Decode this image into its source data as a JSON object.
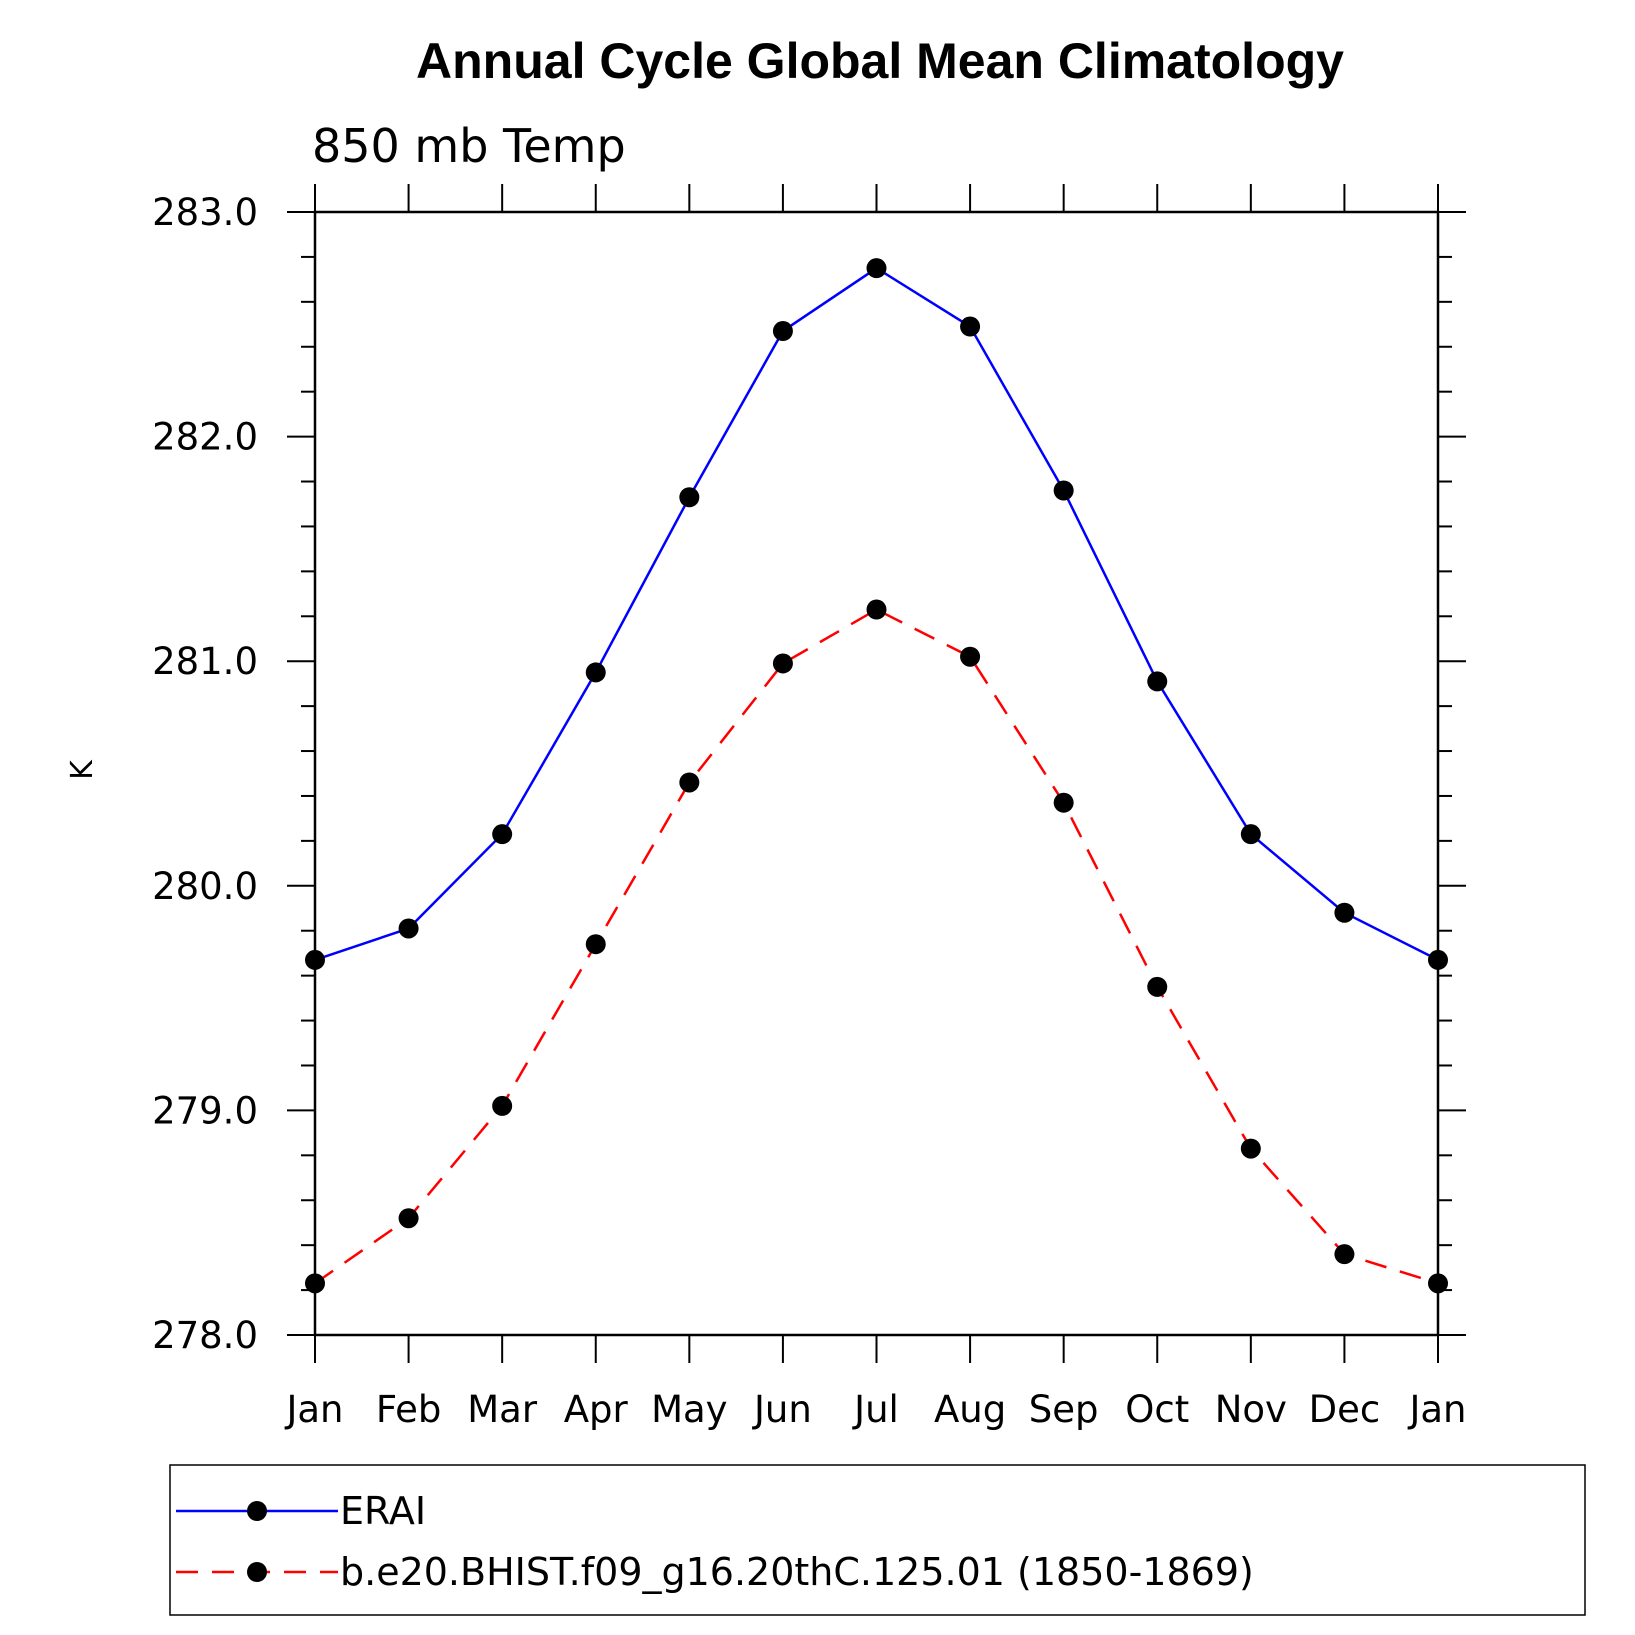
{
  "chart_data": {
    "type": "line",
    "title": "Annual Cycle Global Mean Climatology",
    "subtitle": "850 mb Temp",
    "xlabel": "",
    "ylabel": "K",
    "categories": [
      "Jan",
      "Feb",
      "Mar",
      "Apr",
      "May",
      "Jun",
      "Jul",
      "Aug",
      "Sep",
      "Oct",
      "Nov",
      "Dec",
      "Jan"
    ],
    "ylim": [
      278.0,
      283.0
    ],
    "yticks": [
      "278.0",
      "279.0",
      "280.0",
      "281.0",
      "282.0",
      "283.0"
    ],
    "grid": false,
    "legend_position": "bottom",
    "series": [
      {
        "name": "ERAI",
        "color": "#0000ff",
        "dash": "solid",
        "marker": "filled-circle",
        "values": [
          279.67,
          279.81,
          280.23,
          280.95,
          281.73,
          282.47,
          282.75,
          282.49,
          281.76,
          280.91,
          280.23,
          279.88,
          279.67
        ]
      },
      {
        "name": "b.e20.BHIST.f09_g16.20thC.125.01 (1850-1869)",
        "color": "#ff0000",
        "dash": "dashed",
        "marker": "filled-circle",
        "values": [
          278.23,
          278.52,
          279.02,
          279.74,
          280.46,
          280.99,
          281.23,
          281.02,
          280.37,
          279.55,
          278.83,
          278.36,
          278.23
        ]
      }
    ]
  }
}
